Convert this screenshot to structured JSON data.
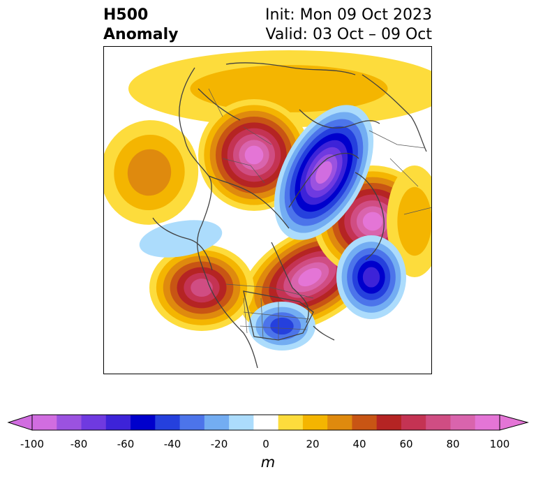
{
  "header": {
    "title_line1": "H500",
    "title_line2": "Anomaly",
    "init_text": "Init: Mon 09 Oct 2023",
    "valid_text": "Valid: 03 Oct – 09 Oct"
  },
  "colorbar": {
    "levels": [
      -100,
      -90,
      -80,
      -70,
      -60,
      -50,
      -40,
      -30,
      -20,
      -10,
      10,
      20,
      30,
      40,
      50,
      60,
      70,
      80,
      90,
      100
    ],
    "colors": [
      "#d16de0",
      "#9b52e0",
      "#6f3ae0",
      "#3d23d8",
      "#0000cc",
      "#2540dd",
      "#4c74ea",
      "#73adf2",
      "#acdcfc",
      "#ffffff",
      "#fddc3c",
      "#f4b501",
      "#df8a0e",
      "#c85514",
      "#b52423",
      "#c43353",
      "#d04d83",
      "#d964ad",
      "#e475d6"
    ],
    "under_color": "#d16de0",
    "over_color": "#e475d6",
    "tick_labels": [
      "-100",
      "-80",
      "-60",
      "-40",
      "-20",
      "0",
      "20",
      "40",
      "60",
      "80",
      "100"
    ],
    "units": "m"
  },
  "map": {
    "projection": "polar-stereographic",
    "field": "500 hPa geopotential height anomaly",
    "palette_ref": "colorbar"
  }
}
